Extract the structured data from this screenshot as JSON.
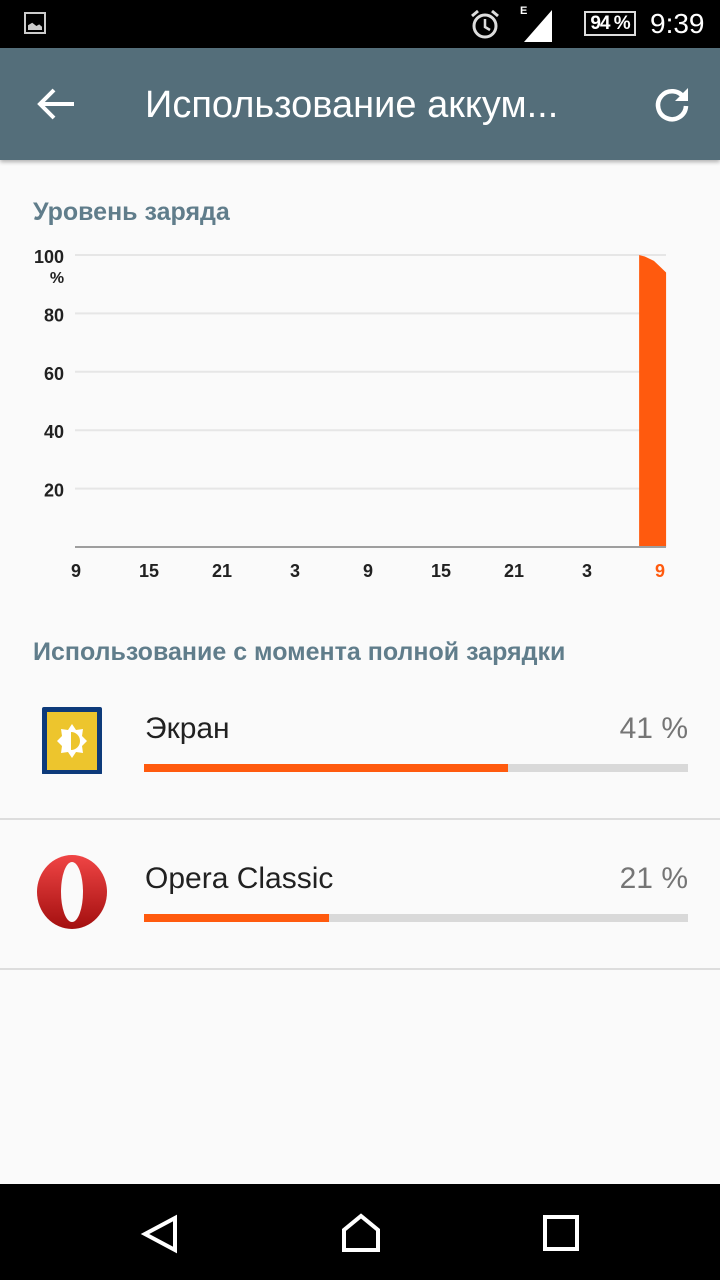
{
  "status_bar": {
    "time": "9:39",
    "battery": "94 %",
    "network": "E",
    "icons": [
      "image-icon",
      "alarm-icon",
      "signal-icon",
      "battery-icon"
    ]
  },
  "app_bar": {
    "title": "Использование аккум...",
    "back_icon": "arrow-back-icon",
    "refresh_icon": "refresh-icon",
    "color": "#546e7a"
  },
  "chart_section": {
    "title": "Уровень заряда"
  },
  "chart_data": {
    "type": "area",
    "title": "Уровень заряда",
    "ylabel": "%",
    "ylim": [
      0,
      100
    ],
    "yticks": [
      "20",
      "40",
      "60",
      "80",
      "100"
    ],
    "xticks": [
      "9",
      "15",
      "21",
      "3",
      "9",
      "15",
      "21",
      "3",
      "9"
    ],
    "grid": true,
    "color": "#ff5a0e",
    "highlight_tick_color": "#ff5a0e",
    "series": [
      {
        "points": [
          {
            "time": "07:17",
            "value": 100
          },
          {
            "time": "07:45",
            "value": 99.5
          },
          {
            "time": "08:30",
            "value": 98
          },
          {
            "time": "09:00",
            "value": 96
          },
          {
            "time": "09:30",
            "value": 94
          }
        ]
      }
    ]
  },
  "usage": {
    "title": "Использование с момента полной зарядки",
    "items": [
      {
        "name": "Экран",
        "percent": "41 %",
        "fill": 0.67,
        "icon": "screen-brightness-icon"
      },
      {
        "name": "Opera Classic",
        "percent": "21 %",
        "fill": 0.34,
        "icon": "opera-icon"
      }
    ]
  },
  "nav_bar": {
    "icons": [
      "back-triangle-icon",
      "home-icon",
      "recents-icon"
    ]
  }
}
